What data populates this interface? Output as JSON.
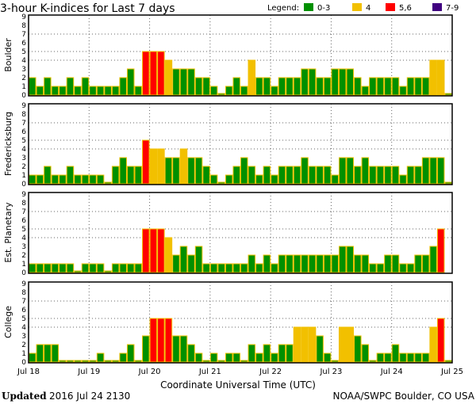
{
  "chart_data": [
    {
      "type": "bar",
      "title": "3-hour K-indices for Last 7 days",
      "xlabel": "Coordinate Universal Time (UTC)",
      "x_ticks": [
        "Jul 18",
        "Jul 19",
        "Jul 20",
        "Jul 21",
        "Jul 22",
        "Jul 23",
        "Jul 24",
        "Jul 25"
      ],
      "y_ticks": [
        "0",
        "1",
        "2",
        "3",
        "4",
        "5",
        "6",
        "7",
        "8",
        "9"
      ],
      "ylim": [
        0,
        9
      ],
      "bars_per_day": 8,
      "grid": {
        "horizontal_dotted_at": [
          4,
          5,
          7
        ],
        "vertical_dotted_at_days": true
      },
      "legend": {
        "label": "Legend:",
        "placement": "top-right",
        "entries": [
          {
            "label": "0-3",
            "color": "#009000"
          },
          {
            "label": "4",
            "color": "#f2c000"
          },
          {
            "label": "5,6",
            "color": "#ff0000"
          },
          {
            "label": "7-9",
            "color": "#400080"
          }
        ]
      },
      "bar_outline_color": "#f2c000",
      "panels": [
        {
          "name": "Boulder",
          "values": [
            2,
            1,
            2,
            1,
            1,
            2,
            1,
            2,
            1,
            1,
            1,
            1,
            2,
            3,
            1,
            5,
            5,
            5,
            4,
            3,
            3,
            3,
            2,
            2,
            1,
            0,
            1,
            2,
            1,
            4,
            2,
            2,
            1,
            2,
            2,
            2,
            3,
            3,
            2,
            2,
            3,
            3,
            3,
            2,
            1,
            2,
            2,
            2,
            2,
            1,
            2,
            2,
            2,
            4,
            4,
            0
          ]
        },
        {
          "name": "Fredericksburg",
          "values": [
            1,
            1,
            2,
            1,
            1,
            2,
            1,
            1,
            1,
            1,
            0,
            2,
            3,
            2,
            2,
            5,
            4,
            4,
            3,
            3,
            4,
            3,
            3,
            2,
            1,
            0,
            1,
            2,
            3,
            2,
            1,
            2,
            1,
            2,
            2,
            2,
            3,
            2,
            2,
            2,
            1,
            3,
            3,
            2,
            3,
            2,
            2,
            2,
            2,
            1,
            2,
            2,
            3,
            3,
            3,
            0
          ]
        },
        {
          "name": "Est. Planetary",
          "values": [
            1,
            1,
            1,
            1,
            1,
            1,
            0,
            1,
            1,
            1,
            0,
            1,
            1,
            1,
            1,
            5,
            5,
            5,
            4,
            2,
            3,
            2,
            3,
            1,
            1,
            1,
            1,
            1,
            1,
            2,
            1,
            2,
            1,
            2,
            2,
            2,
            2,
            2,
            2,
            2,
            2,
            3,
            3,
            2,
            2,
            1,
            1,
            2,
            2,
            1,
            1,
            2,
            2,
            3,
            5,
            null
          ]
        },
        {
          "name": "College",
          "values": [
            1,
            2,
            2,
            2,
            0,
            0,
            0,
            0,
            0,
            1,
            0,
            0,
            1,
            2,
            0,
            3,
            5,
            5,
            5,
            3,
            3,
            2,
            1,
            0,
            1,
            0,
            1,
            1,
            0,
            2,
            1,
            2,
            1,
            2,
            2,
            4,
            4,
            4,
            3,
            1,
            0,
            4,
            4,
            3,
            2,
            0,
            1,
            1,
            2,
            1,
            1,
            1,
            1,
            4,
            5,
            0
          ]
        }
      ]
    }
  ],
  "footer": {
    "updated_label": "Updated",
    "updated_value": "2016 Jul 24 2130",
    "credit": "NOAA/SWPC Boulder, CO USA"
  }
}
